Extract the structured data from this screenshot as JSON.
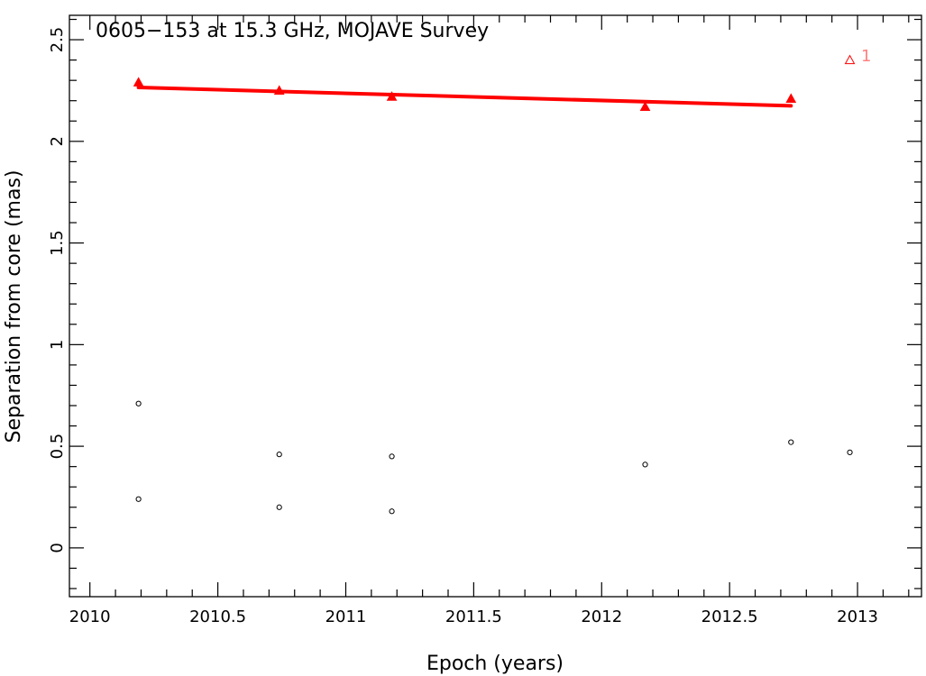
{
  "chart_data": {
    "type": "scatter",
    "title": "0605−153 at 15.3 GHz, MOJAVE Survey",
    "xlabel": "Epoch (years)",
    "ylabel": "Separation from core (mas)",
    "xlim": [
      2009.92,
      2013.25
    ],
    "ylim": [
      -0.24,
      2.62
    ],
    "x_ticks": [
      2010,
      2010.5,
      2011,
      2011.5,
      2012,
      2012.5,
      2013
    ],
    "x_tick_labels": [
      "2010",
      "2010.5",
      "2011",
      "2011.5",
      "2012",
      "2012.5",
      "2013"
    ],
    "y_ticks": [
      0,
      0.5,
      1,
      1.5,
      2,
      2.5
    ],
    "y_tick_labels": [
      "0",
      "0.5",
      "1",
      "1.5",
      "2",
      "2.5"
    ],
    "grid": false,
    "colors": {
      "component": "#ff0000",
      "other": "#000000"
    },
    "series": [
      {
        "marker": "filled-triangle",
        "color": "#ff0000",
        "points": [
          [
            2010.19,
            2.29
          ],
          [
            2010.74,
            2.25
          ],
          [
            2011.18,
            2.22
          ],
          [
            2012.17,
            2.17
          ],
          [
            2012.74,
            2.21
          ]
        ]
      },
      {
        "marker": "open-triangle",
        "color": "#ff0000",
        "points": [
          [
            2012.97,
            2.4
          ]
        ]
      },
      {
        "marker": "open-circle",
        "color": "#000000",
        "points": [
          [
            2010.19,
            0.71
          ],
          [
            2010.19,
            0.24
          ],
          [
            2010.74,
            0.46
          ],
          [
            2010.74,
            0.2
          ],
          [
            2011.18,
            0.45
          ],
          [
            2011.18,
            0.18
          ],
          [
            2012.17,
            0.41
          ],
          [
            2012.74,
            0.52
          ],
          [
            2012.97,
            0.47
          ]
        ]
      }
    ],
    "fit_line": {
      "color": "#ff0000",
      "x": [
        2010.19,
        2012.74
      ],
      "y": [
        2.265,
        2.175
      ]
    },
    "annotations": [
      {
        "text": "1",
        "x": 2013.0,
        "y": 2.42,
        "color": "#ff8080"
      }
    ]
  }
}
